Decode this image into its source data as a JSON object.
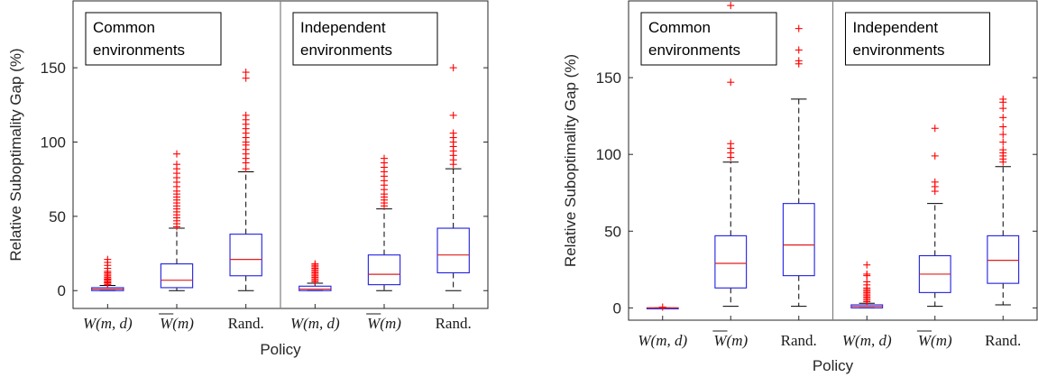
{
  "chart_data": [
    {
      "type": "boxplot",
      "xlabel": "Policy",
      "ylabel": "Relative Suboptimality Gap (%)",
      "ylim": [
        -12,
        195
      ],
      "yticks": [
        0,
        50,
        100,
        150
      ],
      "groups": [
        {
          "label_lines": [
            "Common",
            "environments"
          ],
          "boxes": [
            {
              "tick_main": "W",
              "tick_args": "(m, d)",
              "overline": false,
              "whisker_low": 0,
              "q1": 0,
              "median": 1,
              "q3": 2,
              "whisker_high": 3.5,
              "outliers": [
                4,
                5,
                5.5,
                6,
                7,
                7.5,
                8,
                9,
                10,
                11,
                12,
                13,
                15,
                17,
                19,
                21
              ]
            },
            {
              "tick_main": "W",
              "tick_args": "(m)",
              "overline": true,
              "whisker_low": 0,
              "q1": 2,
              "median": 7,
              "q3": 18,
              "whisker_high": 42,
              "outliers": [
                43,
                45,
                47,
                49,
                51,
                53,
                55,
                57,
                59,
                61,
                63,
                65,
                67,
                70,
                73,
                76,
                79,
                82,
                85,
                92
              ]
            },
            {
              "tick_main": "Rand.",
              "tick_args": "",
              "overline": false,
              "whisker_low": 0,
              "q1": 10,
              "median": 21,
              "q3": 38,
              "whisker_high": 80,
              "outliers": [
                82,
                86,
                89,
                92,
                95,
                98,
                100,
                103,
                106,
                109,
                112,
                115,
                118,
                143,
                147
              ]
            }
          ]
        },
        {
          "label_lines": [
            "Independent",
            "environments"
          ],
          "boxes": [
            {
              "tick_main": "W",
              "tick_args": "(m, d)",
              "overline": false,
              "whisker_low": 0,
              "q1": 0,
              "median": 1,
              "q3": 3,
              "whisker_high": 5,
              "outliers": [
                6,
                7,
                8,
                9,
                10,
                11,
                12,
                13,
                14,
                15,
                16,
                17,
                18
              ]
            },
            {
              "tick_main": "W",
              "tick_args": "(m)",
              "overline": true,
              "whisker_low": 0,
              "q1": 4,
              "median": 11,
              "q3": 24,
              "whisker_high": 55,
              "outliers": [
                57,
                59,
                61,
                63,
                65,
                68,
                71,
                74,
                77,
                80,
                83,
                86,
                89
              ]
            },
            {
              "tick_main": "Rand.",
              "tick_args": "",
              "overline": false,
              "whisker_low": 0,
              "q1": 12,
              "median": 24,
              "q3": 42,
              "whisker_high": 82,
              "outliers": [
                85,
                88,
                91,
                94,
                97,
                100,
                103,
                106,
                118,
                150
              ]
            }
          ]
        }
      ]
    },
    {
      "type": "boxplot",
      "xlabel": "Policy",
      "ylabel": "Relative Suboptimality Gap (%)",
      "ylim": [
        -8,
        200
      ],
      "yticks": [
        0,
        50,
        100,
        150
      ],
      "groups": [
        {
          "label_lines": [
            "Common",
            "environments"
          ],
          "boxes": [
            {
              "tick_main": "W",
              "tick_args": "(m, d)",
              "overline": false,
              "whisker_low": 0,
              "q1": 0,
              "median": 0,
              "q3": 0,
              "whisker_high": 0,
              "outliers": [
                0.5
              ]
            },
            {
              "tick_main": "W",
              "tick_args": "(m)",
              "overline": true,
              "whisker_low": 1,
              "q1": 13,
              "median": 29,
              "q3": 47,
              "whisker_high": 95,
              "outliers": [
                98,
                101,
                104,
                107,
                147,
                197
              ]
            },
            {
              "tick_main": "Rand.",
              "tick_args": "",
              "overline": false,
              "whisker_low": 1,
              "q1": 21,
              "median": 41,
              "q3": 68,
              "whisker_high": 136,
              "outliers": [
                159,
                161,
                168,
                182
              ]
            }
          ]
        },
        {
          "label_lines": [
            "Independent",
            "environments"
          ],
          "boxes": [
            {
              "tick_main": "W",
              "tick_args": "(m, d)",
              "overline": false,
              "whisker_low": 0,
              "q1": 0,
              "median": 1,
              "q3": 2,
              "whisker_high": 3,
              "outliers": [
                4,
                5,
                6,
                7,
                8,
                9,
                10,
                11,
                12,
                13,
                15,
                17,
                21,
                22,
                28
              ]
            },
            {
              "tick_main": "W",
              "tick_args": "(m)",
              "overline": true,
              "whisker_low": 1,
              "q1": 10,
              "median": 22,
              "q3": 34,
              "whisker_high": 68,
              "outliers": [
                76,
                79,
                82,
                99,
                117
              ]
            },
            {
              "tick_main": "Rand.",
              "tick_args": "",
              "overline": false,
              "whisker_low": 2,
              "q1": 16,
              "median": 31,
              "q3": 47,
              "whisker_high": 92,
              "outliers": [
                95,
                97,
                99,
                101,
                103,
                108,
                113,
                118,
                124,
                130,
                134,
                136
              ]
            }
          ]
        }
      ]
    }
  ]
}
